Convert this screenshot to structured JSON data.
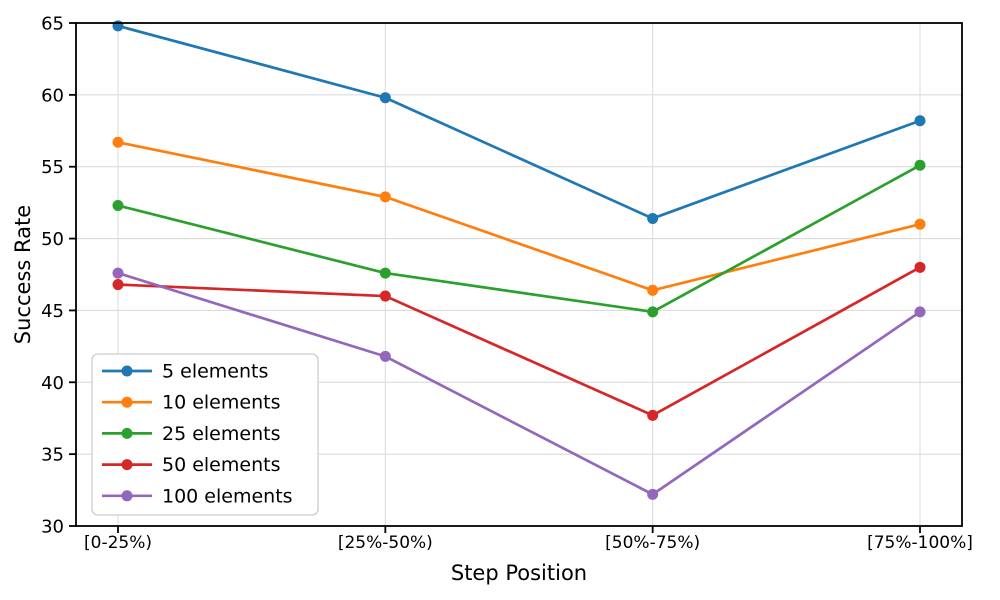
{
  "chart_data": {
    "type": "line",
    "title": "",
    "xlabel": "Step Position",
    "ylabel": "Success Rate",
    "categories": [
      "[0-25%)",
      "[25%-50%)",
      "[50%-75%)",
      "[75%-100%]"
    ],
    "series": [
      {
        "name": "5 elements",
        "color": "#1f77b4",
        "values": [
          64.8,
          59.8,
          51.4,
          58.2
        ]
      },
      {
        "name": "10 elements",
        "color": "#ff7f0e",
        "values": [
          56.7,
          52.9,
          46.4,
          51.0
        ]
      },
      {
        "name": "25 elements",
        "color": "#2ca02c",
        "values": [
          52.3,
          47.6,
          44.9,
          55.1
        ]
      },
      {
        "name": "50 elements",
        "color": "#d62728",
        "values": [
          46.8,
          46.0,
          37.7,
          48.0
        ]
      },
      {
        "name": "100 elements",
        "color": "#9467bd",
        "values": [
          47.6,
          41.8,
          32.2,
          44.9
        ]
      }
    ],
    "ylim": [
      30,
      65
    ],
    "yticks": [
      30,
      35,
      40,
      45,
      50,
      55,
      60,
      65
    ],
    "grid": true,
    "legend_position": "lower left",
    "marker": "circle",
    "background": "#ffffff",
    "grid_color": "#dcdcdc",
    "axis_color": "#000000",
    "legend_border_color": "#cccccc"
  }
}
